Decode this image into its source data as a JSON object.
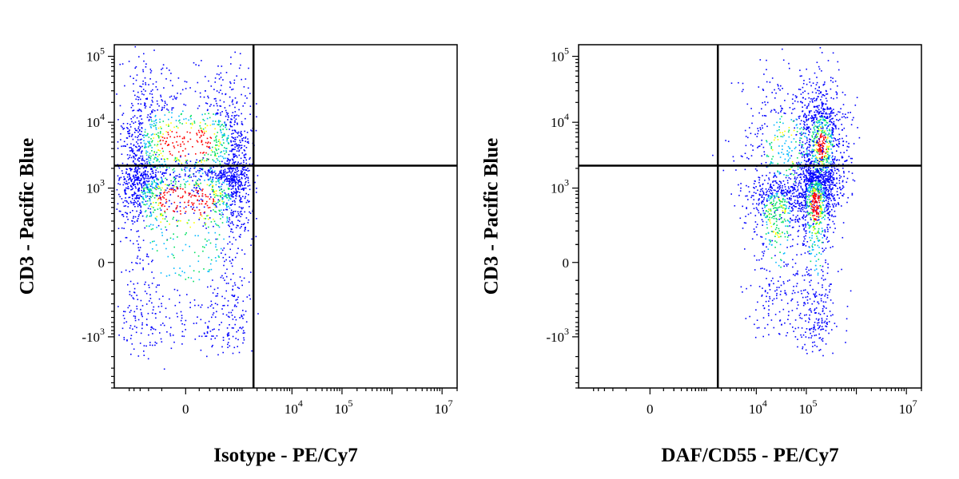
{
  "chart_data": [
    {
      "type": "scatter",
      "subtype": "flow-cytometry-density-plot",
      "title": "",
      "xlabel": "Isotype - PE/Cy7",
      "ylabel": "CD3 - Pacific Blue",
      "x_scale": "biexponential",
      "y_scale": "biexponential",
      "xlim": [
        -2000,
        20000000
      ],
      "ylim": [
        -6000,
        150000
      ],
      "x_tick_labels": [
        {
          "value": 0,
          "base": "0",
          "exp": ""
        },
        {
          "value": 10000,
          "base": "10",
          "exp": "4"
        },
        {
          "value": 100000,
          "base": "10",
          "exp": "5"
        },
        {
          "value": 10000000,
          "base": "10",
          "exp": "7"
        }
      ],
      "y_tick_labels": [
        {
          "value": 100000,
          "base": "10",
          "exp": "5"
        },
        {
          "value": 10000,
          "base": "10",
          "exp": "4"
        },
        {
          "value": 1000,
          "base": "10",
          "exp": "3"
        },
        {
          "value": 0,
          "base": "0",
          "exp": ""
        },
        {
          "value": -1000,
          "base": "-10",
          "exp": "3"
        }
      ],
      "quadrant_gates": {
        "x": 1700,
        "y": 2200
      },
      "populations": [
        {
          "x_center": 0,
          "y_center": 5000,
          "x_spread": 600,
          "y_spread": 0.55,
          "events": 1300,
          "peak_color": "#ff0000"
        },
        {
          "x_center": 0,
          "y_center": 700,
          "x_spread": 650,
          "y_spread": 0.8,
          "events": 1500,
          "peak_color": "#ff0000"
        }
      ],
      "density_colors": [
        "#0000ff",
        "#00b8ff",
        "#00e060",
        "#ffff00",
        "#ff0000"
      ],
      "grid": false,
      "legend": "none"
    },
    {
      "type": "scatter",
      "subtype": "flow-cytometry-density-plot",
      "title": "",
      "xlabel": "DAF/CD55 - PE/Cy7",
      "ylabel": "CD3 - Pacific Blue",
      "x_scale": "biexponential",
      "y_scale": "biexponential",
      "xlim": [
        -2000,
        20000000
      ],
      "ylim": [
        -6000,
        150000
      ],
      "x_tick_labels": [
        {
          "value": 0,
          "base": "0",
          "exp": ""
        },
        {
          "value": 10000,
          "base": "10",
          "exp": "4"
        },
        {
          "value": 100000,
          "base": "10",
          "exp": "5"
        },
        {
          "value": 10000000,
          "base": "10",
          "exp": "7"
        }
      ],
      "y_tick_labels": [
        {
          "value": 100000,
          "base": "10",
          "exp": "5"
        },
        {
          "value": 10000,
          "base": "10",
          "exp": "4"
        },
        {
          "value": 1000,
          "base": "10",
          "exp": "3"
        },
        {
          "value": 0,
          "base": "0",
          "exp": ""
        },
        {
          "value": -1000,
          "base": "-10",
          "exp": "3"
        }
      ],
      "quadrant_gates": {
        "x": 1700,
        "y": 2200
      },
      "populations": [
        {
          "x_center": 200000,
          "y_center": 4500,
          "x_spread": 0.25,
          "y_spread": 0.5,
          "events": 900,
          "peak_color": "#ff0000"
        },
        {
          "x_center": 40000,
          "y_center": 4000,
          "x_spread": 0.5,
          "y_spread": 0.6,
          "events": 450,
          "peak_color": "#00b8ff"
        },
        {
          "x_center": 150000,
          "y_center": 600,
          "x_spread": 0.22,
          "y_spread": 0.8,
          "events": 1000,
          "peak_color": "#ff0000"
        },
        {
          "x_center": 25000,
          "y_center": 400,
          "x_spread": 0.3,
          "y_spread": 0.8,
          "events": 550,
          "peak_color": "#00e060"
        }
      ],
      "density_colors": [
        "#0000ff",
        "#00b8ff",
        "#00e060",
        "#ffff00",
        "#ff0000"
      ],
      "grid": false,
      "legend": "none"
    }
  ]
}
